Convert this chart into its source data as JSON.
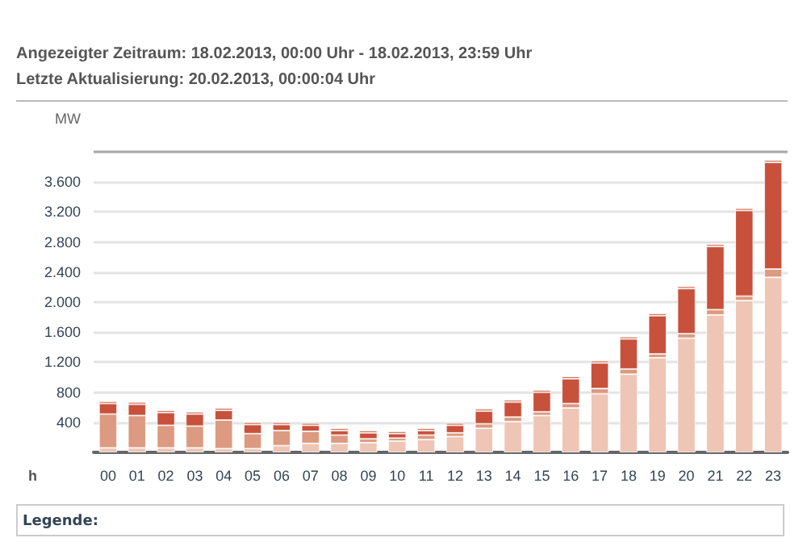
{
  "chart_data": {
    "type": "bar",
    "title": "Angezeigter Zeitraum: 18.02.2013, 00:00 Uhr - 18.02.2013, 23:59 Uhr",
    "subtitle": "Letzte Aktualisierung: 20.02.2013, 00:00:04 Uhr",
    "xlabel": "h",
    "ylabel": "MW",
    "annotations": [
      "Legende:"
    ],
    "categories": [
      "00",
      "01",
      "02",
      "03",
      "04",
      "05",
      "06",
      "07",
      "08",
      "09",
      "10",
      "11",
      "12",
      "13",
      "14",
      "15",
      "16",
      "17",
      "18",
      "19",
      "20",
      "21",
      "22",
      "23"
    ],
    "stacked": true,
    "grid": "y",
    "ylim": [
      0,
      4000
    ],
    "yticks": [
      400,
      800,
      {
        "value": 1200,
        "label": "1.200"
      },
      {
        "value": 1600,
        "label": "1.600"
      },
      {
        "value": 2000,
        "label": "2.000"
      },
      {
        "value": 2400,
        "label": "2.400"
      },
      {
        "value": 2800,
        "label": "2.800"
      },
      {
        "value": 3200,
        "label": "3.200"
      },
      {
        "value": 3600,
        "label": "3.600"
      },
      {
        "value": 4000,
        "label": null
      }
    ],
    "series": [
      {
        "color": "#efc5b5",
        "values": [
          60,
          60,
          60,
          60,
          50,
          50,
          90,
          120,
          120,
          130,
          150,
          170,
          210,
          320,
          410,
          490,
          590,
          780,
          1040,
          1260,
          1520,
          1830,
          2020,
          2330
        ]
      },
      {
        "color": "#dc9a80",
        "values": [
          450,
          430,
          300,
          290,
          380,
          200,
          200,
          160,
          110,
          50,
          40,
          60,
          50,
          60,
          60,
          50,
          60,
          70,
          70,
          50,
          60,
          70,
          60,
          110
        ]
      },
      {
        "color": "#c8513c",
        "values": [
          140,
          150,
          170,
          160,
          130,
          120,
          80,
          80,
          60,
          80,
          60,
          60,
          100,
          170,
          200,
          260,
          330,
          340,
          400,
          510,
          600,
          840,
          1140,
          1420
        ]
      },
      {
        "color": "#d06a50",
        "values": [
          30,
          30,
          30,
          30,
          30,
          30,
          30,
          30,
          30,
          30,
          30,
          30,
          30,
          30,
          30,
          30,
          30,
          30,
          30,
          30,
          30,
          30,
          30,
          30
        ]
      }
    ]
  }
}
